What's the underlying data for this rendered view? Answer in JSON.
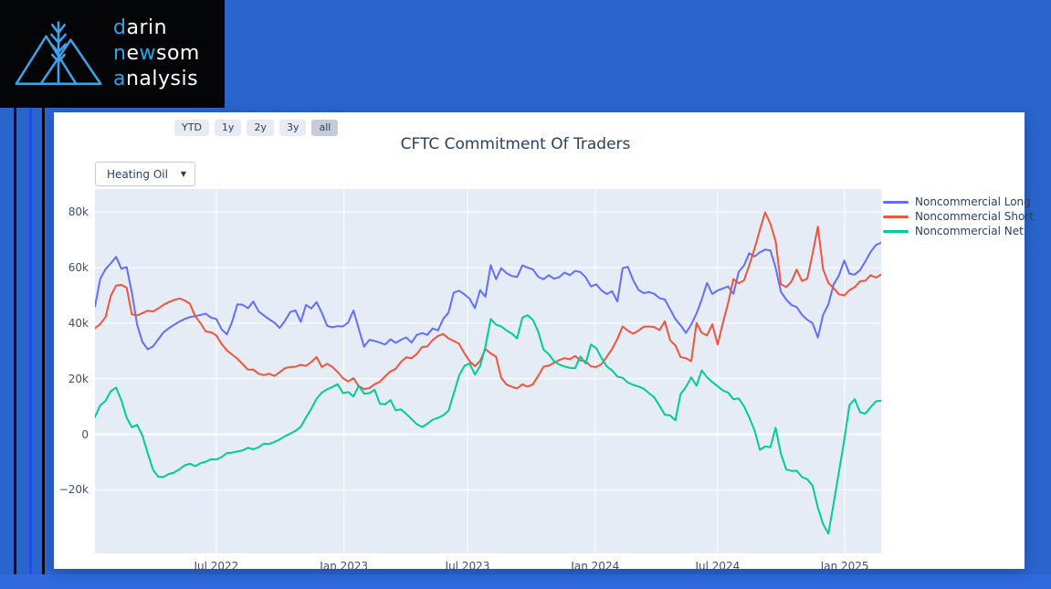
{
  "page": {
    "background": "#2A65CD",
    "bottom_bar_color": "#2F6BDF",
    "stripe_colors": [
      "#070B12",
      "#1E4FE3",
      "#070B12"
    ]
  },
  "logo": {
    "icon": "mountains-wheat",
    "icon_color": "#3FA2E8",
    "text_color_primary": "#FFFFFF",
    "text_color_accent": "#2BA3F0",
    "lines": [
      [
        [
          "d",
          1
        ],
        [
          "arin",
          0
        ]
      ],
      [
        [
          "n",
          1
        ],
        [
          "e",
          0
        ],
        [
          "w",
          1
        ],
        [
          "som",
          0
        ]
      ],
      [
        [
          "a",
          1
        ],
        [
          "nalysis",
          0
        ]
      ]
    ]
  },
  "controls": {
    "range_buttons": [
      {
        "label": "YTD",
        "active": false
      },
      {
        "label": "1y",
        "active": false
      },
      {
        "label": "2y",
        "active": false
      },
      {
        "label": "3y",
        "active": false
      },
      {
        "label": "all",
        "active": true
      }
    ],
    "dropdown": {
      "value": "Heating Oil",
      "caret": "▼"
    }
  },
  "chart_data": {
    "type": "line",
    "title": "CFTC Commitment Of Traders",
    "x_unit": "weekly observations, Apr 2022 - Feb 2025",
    "value_unit": "contracts (thousands)",
    "plot_bg": "#E5ECF6",
    "grid_color": "#FFFFFF",
    "grid": true,
    "legend_position": "right-top-outside",
    "ylim": [
      -42.9,
      88.3
    ],
    "y_ticks": [
      {
        "value": 80,
        "label": "80k"
      },
      {
        "value": 60,
        "label": "60k"
      },
      {
        "value": 40,
        "label": "40k"
      },
      {
        "value": 20,
        "label": "20k"
      },
      {
        "value": 0,
        "label": "0"
      },
      {
        "value": -20,
        "label": "−20k"
      }
    ],
    "x_ticks": [
      {
        "pos": 23.0,
        "label": "Jul 2022"
      },
      {
        "pos": 47.2,
        "label": "Jan 2023"
      },
      {
        "pos": 70.6,
        "label": "Jul 2023"
      },
      {
        "pos": 94.8,
        "label": "Jan 2024"
      },
      {
        "pos": 118.0,
        "label": "Jul 2024"
      },
      {
        "pos": 142.1,
        "label": "Jan 2025"
      }
    ],
    "series": [
      {
        "name": "Noncommercial Long",
        "color": "#636EFA",
        "values": [
          46.0,
          56.0,
          59.5,
          61.5,
          63.9,
          59.6,
          60.2,
          51.0,
          39.4,
          33.2,
          30.6,
          31.6,
          34.2,
          36.7,
          38.2,
          39.4,
          40.6,
          41.5,
          42.2,
          42.5,
          43.0,
          43.4,
          42.0,
          41.5,
          37.8,
          36.0,
          40.5,
          46.8,
          46.6,
          45.4,
          47.8,
          44.3,
          42.8,
          41.4,
          40.2,
          38.3,
          40.8,
          44.0,
          44.6,
          40.5,
          46.6,
          45.3,
          47.6,
          43.7,
          39.0,
          38.5,
          38.9,
          38.8,
          40.3,
          44.6,
          38.0,
          31.5,
          34.0,
          33.6,
          33.0,
          32.3,
          34.2,
          32.9,
          34.0,
          34.9,
          33.0,
          35.8,
          36.4,
          35.8,
          38.1,
          37.4,
          41.5,
          43.8,
          51.0,
          51.7,
          50.4,
          48.8,
          45.4,
          51.9,
          49.5,
          60.9,
          55.8,
          59.8,
          58.0,
          57.0,
          56.6,
          60.8,
          60.0,
          59.4,
          56.7,
          55.8,
          57.3,
          56.0,
          56.6,
          58.2,
          57.3,
          58.8,
          58.4,
          56.5,
          53.2,
          54.0,
          51.8,
          50.5,
          51.5,
          47.8,
          59.8,
          60.3,
          55.5,
          52.0,
          50.8,
          51.2,
          50.6,
          49.0,
          48.5,
          45.0,
          41.5,
          39.2,
          36.5,
          39.5,
          43.5,
          48.5,
          54.5,
          50.5,
          51.8,
          52.5,
          53.2,
          50.6,
          58.5,
          60.8,
          65.2,
          64.0,
          65.5,
          66.5,
          66.2,
          60.0,
          51.3,
          48.5,
          46.5,
          45.8,
          43.0,
          41.2,
          40.0,
          34.8,
          43.0,
          46.8,
          54.0,
          57.2,
          62.6,
          57.8,
          57.5,
          59.1,
          62.3,
          65.6,
          68.1,
          69.0
        ]
      },
      {
        "name": "Noncommercial Short",
        "color": "#EF553B",
        "values": [
          38.2,
          39.7,
          42.2,
          49.8,
          53.5,
          53.8,
          52.8,
          43.2,
          42.8,
          43.6,
          44.5,
          44.2,
          45.3,
          46.6,
          47.6,
          48.3,
          48.9,
          48.2,
          47.0,
          42.5,
          40.0,
          37.0,
          36.7,
          35.6,
          32.5,
          30.2,
          28.7,
          27.2,
          25.2,
          23.3,
          23.3,
          21.8,
          21.3,
          21.8,
          21.0,
          22.3,
          23.8,
          24.2,
          24.3,
          25.0,
          24.6,
          26.0,
          27.8,
          24.2,
          25.4,
          24.2,
          22.4,
          20.2,
          19.0,
          20.2,
          17.3,
          16.3,
          16.6,
          18.0,
          18.9,
          20.9,
          22.6,
          23.6,
          26.1,
          27.7,
          27.4,
          28.9,
          31.4,
          31.6,
          33.9,
          35.4,
          36.1,
          34.5,
          33.6,
          32.6,
          29.2,
          26.3,
          24.5,
          26.4,
          30.7,
          29.1,
          28.0,
          20.3,
          17.9,
          17.1,
          16.5,
          18.0,
          17.1,
          18.0,
          21.0,
          24.3,
          24.7,
          25.7,
          26.7,
          27.4,
          27.0,
          28.2,
          26.6,
          26.3,
          24.4,
          24.2,
          25.2,
          27.9,
          30.7,
          34.3,
          38.8,
          37.3,
          36.2,
          37.3,
          38.7,
          38.8,
          38.6,
          37.5,
          40.7,
          33.8,
          32.0,
          27.8,
          27.4,
          26.3,
          40.1,
          36.5,
          35.6,
          39.6,
          32.3,
          40.0,
          47.2,
          55.9,
          54.4,
          55.4,
          60.8,
          66.8,
          73.5,
          79.9,
          75.8,
          69.6,
          54.0,
          53.0,
          55.0,
          59.3,
          55.2,
          56.0,
          65.0,
          74.8,
          59.5,
          54.5,
          52.6,
          50.4,
          50.0,
          51.9,
          53.0,
          55.1,
          55.3,
          57.3,
          56.4,
          57.5
        ]
      },
      {
        "name": "Noncommercial Net",
        "color": "#00CC96",
        "values": [
          6.2,
          10.5,
          12.0,
          15.5,
          16.8,
          12.2,
          6.0,
          2.5,
          3.4,
          -0.5,
          -6.8,
          -12.8,
          -15.3,
          -15.4,
          -14.3,
          -13.8,
          -12.6,
          -11.2,
          -10.6,
          -11.5,
          -10.4,
          -9.9,
          -9.0,
          -9.1,
          -8.2,
          -6.8,
          -6.6,
          -6.2,
          -5.8,
          -4.9,
          -5.4,
          -4.7,
          -3.4,
          -3.5,
          -2.8,
          -1.9,
          -0.7,
          0.2,
          1.2,
          2.7,
          6.0,
          9.2,
          12.8,
          15.0,
          16.2,
          17.0,
          18.0,
          14.8,
          15.2,
          13.6,
          17.5,
          14.6,
          14.8,
          16.0,
          11.0,
          10.8,
          12.3,
          8.6,
          9.0,
          7.3,
          5.5,
          3.6,
          2.6,
          3.8,
          5.2,
          5.9,
          6.8,
          8.5,
          14.6,
          21.0,
          24.6,
          25.5,
          21.5,
          24.5,
          31.5,
          41.5,
          39.5,
          38.8,
          37.4,
          36.2,
          34.5,
          42.0,
          42.9,
          41.2,
          37.0,
          30.5,
          28.8,
          26.3,
          25.1,
          24.4,
          23.9,
          23.8,
          28.0,
          25.5,
          32.3,
          31.0,
          27.5,
          24.4,
          23.0,
          20.8,
          20.3,
          18.6,
          17.8,
          17.2,
          16.4,
          14.8,
          13.3,
          10.2,
          7.0,
          6.8,
          5.0,
          14.5,
          17.0,
          20.5,
          17.5,
          23.0,
          20.5,
          18.8,
          17.3,
          15.8,
          15.0,
          12.6,
          12.9,
          10.1,
          6.1,
          1.5,
          -5.6,
          -4.4,
          -4.7,
          2.3,
          -7.0,
          -12.6,
          -13.2,
          -13.1,
          -15.4,
          -16.2,
          -18.5,
          -26.5,
          -32.3,
          -35.8,
          -24.8,
          -13.5,
          -2.0,
          10.5,
          12.6,
          7.9,
          7.4,
          9.7,
          11.8,
          12.1
        ]
      }
    ]
  }
}
